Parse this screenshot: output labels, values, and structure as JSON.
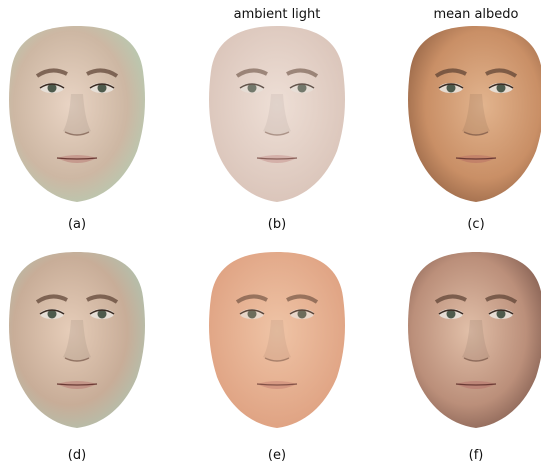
{
  "column_titles": [
    "ambient light",
    "mean albedo"
  ],
  "panels": [
    {
      "label": "(a)"
    },
    {
      "label": "(b)"
    },
    {
      "label": "(c)"
    },
    {
      "label": "(d)"
    },
    {
      "label": "(e)"
    },
    {
      "label": "(f)"
    }
  ]
}
